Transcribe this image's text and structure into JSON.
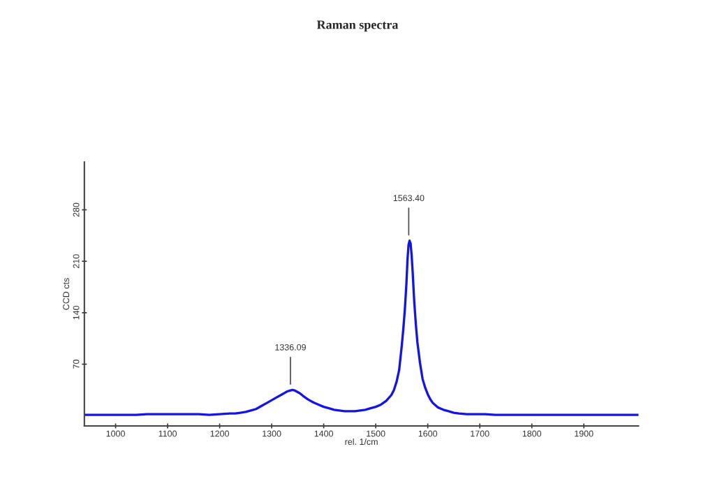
{
  "chart_data": {
    "type": "line",
    "title": "Raman spectra",
    "xlabel": "rel. 1/cm",
    "ylabel": "CCD cts",
    "x": [
      940,
      960,
      980,
      1000,
      1020,
      1040,
      1060,
      1080,
      1100,
      1120,
      1140,
      1160,
      1180,
      1200,
      1220,
      1230,
      1240,
      1250,
      1260,
      1270,
      1280,
      1290,
      1300,
      1310,
      1320,
      1325,
      1330,
      1335,
      1340,
      1345,
      1350,
      1355,
      1360,
      1370,
      1380,
      1390,
      1400,
      1410,
      1420,
      1430,
      1440,
      1450,
      1460,
      1470,
      1480,
      1490,
      1500,
      1510,
      1520,
      1530,
      1535,
      1540,
      1545,
      1550,
      1553,
      1556,
      1559,
      1561,
      1563,
      1565,
      1567,
      1569,
      1571,
      1574,
      1577,
      1580,
      1585,
      1590,
      1595,
      1600,
      1605,
      1610,
      1620,
      1630,
      1640,
      1650,
      1660,
      1675,
      1690,
      1710,
      1730,
      1750,
      1770,
      1790,
      1810,
      1830,
      1850,
      1870,
      1890,
      1910,
      1930,
      1950,
      1970,
      1990,
      2005
    ],
    "series": [
      {
        "color": "#1414e6",
        "values": [
          1,
          1,
          1,
          1,
          1,
          1,
          2,
          2,
          2,
          2,
          2,
          2,
          1,
          2,
          3,
          3,
          4,
          5,
          7,
          9,
          13,
          17,
          21,
          25,
          29,
          31,
          33,
          34,
          35,
          34,
          32,
          30,
          27,
          22,
          18,
          15,
          12,
          10,
          8,
          7,
          6,
          6,
          6,
          7,
          8,
          10,
          12,
          15,
          20,
          28,
          35,
          46,
          62,
          95,
          118,
          145,
          180,
          212,
          232,
          238,
          234,
          218,
          195,
          155,
          125,
          100,
          72,
          50,
          38,
          29,
          22,
          17,
          11,
          8,
          6,
          4,
          3,
          2,
          2,
          2,
          1,
          1,
          1,
          1,
          1,
          1,
          1,
          1,
          1,
          1,
          1,
          1,
          1,
          1,
          1
        ]
      }
    ],
    "xlim": [
      940,
      2005
    ],
    "ylim": [
      -14,
      345
    ],
    "xticks": [
      1000,
      1100,
      1200,
      1300,
      1400,
      1500,
      1600,
      1700,
      1800,
      1900
    ],
    "yticks": [
      70,
      140,
      210,
      280
    ],
    "annotations": [
      {
        "text": "1336.09",
        "x": 1336.09,
        "y": 35
      },
      {
        "text": "1563.40",
        "x": 1563.4,
        "y": 238
      }
    ],
    "line_style": "solid",
    "marker": "none",
    "grid": false
  }
}
